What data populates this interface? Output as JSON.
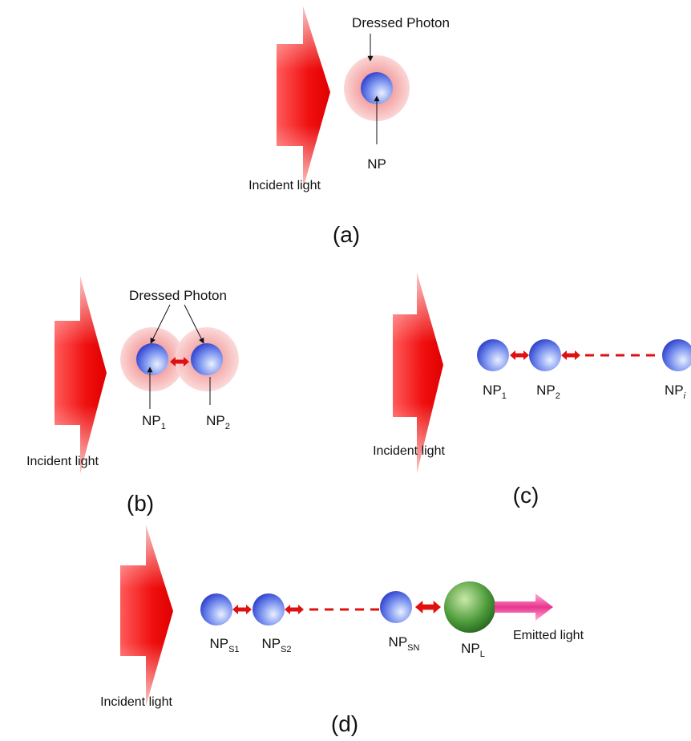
{
  "panels": [
    {
      "caption": "(a)",
      "incident_light": "Incident light",
      "dressed_photon": "Dressed Photon",
      "particles": [
        {
          "base": "NP"
        }
      ]
    },
    {
      "caption": "(b)",
      "incident_light": "Incident light",
      "dressed_photon": "Dressed Photon",
      "particles": [
        {
          "base": "NP",
          "sub": "1"
        },
        {
          "base": "NP",
          "sub": "2"
        }
      ]
    },
    {
      "caption": "(c)",
      "incident_light": "Incident light",
      "particles": [
        {
          "base": "NP",
          "sub": "1"
        },
        {
          "base": "NP",
          "sub": "2"
        },
        {
          "base": "NP",
          "sub": "i"
        }
      ]
    },
    {
      "caption": "(d)",
      "incident_light": "Incident light",
      "emitted_light": "Emitted light",
      "particles": [
        {
          "base": "NP",
          "sub": "S1"
        },
        {
          "base": "NP",
          "sub": "S2"
        },
        {
          "base": "NP",
          "sub": "SN"
        },
        {
          "base": "NP",
          "sub": "L"
        }
      ]
    }
  ]
}
